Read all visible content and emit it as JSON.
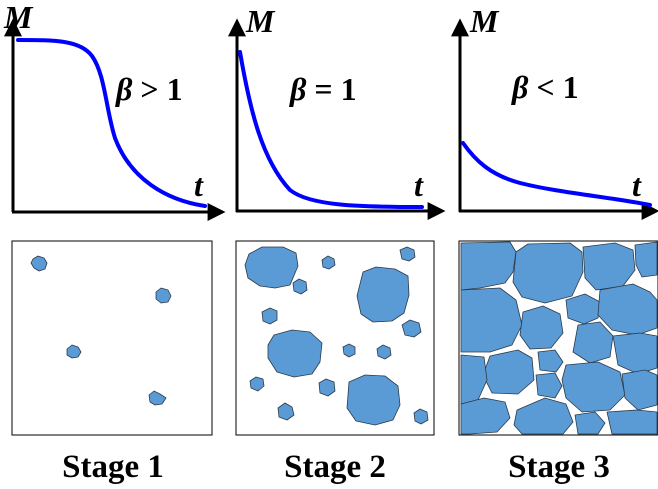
{
  "colors": {
    "curve": "#0000ff",
    "grain_fill": "#5b9bd5",
    "grain_stroke": "#2b3a4a",
    "axis": "#000000"
  },
  "panels": [
    {
      "y_axis_label": "M",
      "x_axis_label": "t",
      "beta_symbol": "β",
      "beta_relation": " > 1",
      "curve_shape": "sigmoid decay",
      "stage_label": "Stage 1"
    },
    {
      "y_axis_label": "M",
      "x_axis_label": "t",
      "beta_symbol": "β",
      "beta_relation": " = 1",
      "curve_shape": "exponential decay",
      "stage_label": "Stage 2"
    },
    {
      "y_axis_label": "M",
      "x_axis_label": "t",
      "beta_symbol": "β",
      "beta_relation": " < 1",
      "curve_shape": "stretched decay",
      "stage_label": "Stage 3"
    }
  ]
}
